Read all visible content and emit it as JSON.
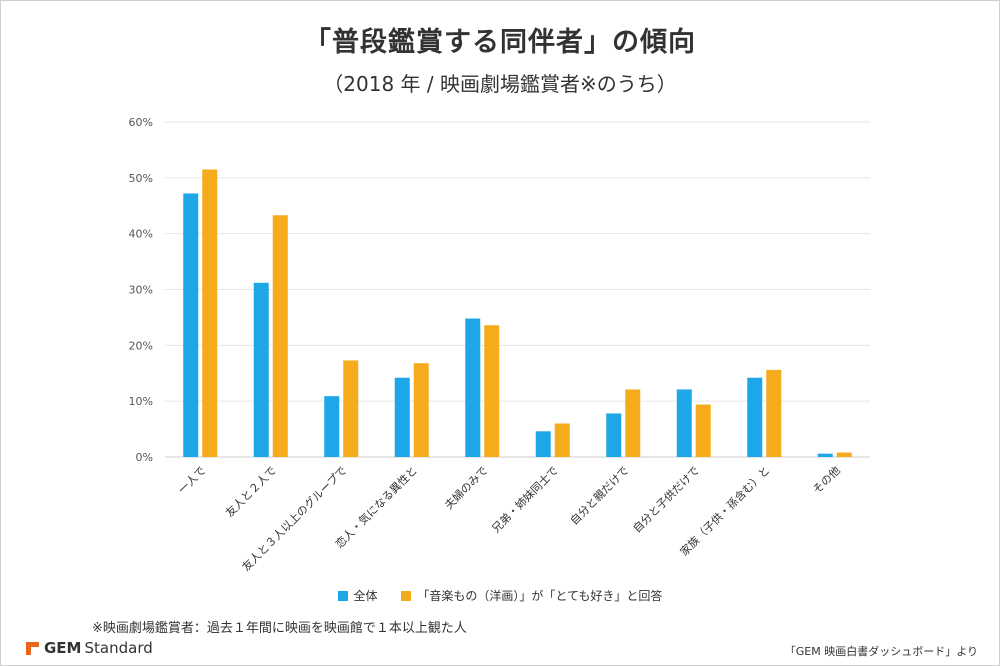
{
  "chart_data": {
    "type": "bar",
    "title": "「普段鑑賞する同伴者」の傾向",
    "subtitle": "（2018 年 / 映画劇場鑑賞者※のうち）",
    "categories": [
      "一人で",
      "友人と２人で",
      "友人と３人以上のグループで",
      "恋人・気になる異性と",
      "夫婦のみで",
      "兄弟・姉妹同士で",
      "自分と親だけで",
      "自分と子供だけで",
      "家族（子供・孫含む）と",
      "その他"
    ],
    "series": [
      {
        "name": "全体",
        "color": "#1ea7e8",
        "values": [
          47.2,
          31.2,
          10.9,
          14.2,
          24.8,
          4.6,
          7.8,
          12.1,
          14.2,
          0.6
        ]
      },
      {
        "name": "「音楽もの（洋画）」が「とても好き」と回答",
        "color": "#f5ab1c",
        "values": [
          51.5,
          43.3,
          17.3,
          16.8,
          23.6,
          6.0,
          12.1,
          9.4,
          15.6,
          0.8
        ]
      }
    ],
    "yticks": [
      "0%",
      "10%",
      "20%",
      "30%",
      "40%",
      "50%",
      "60%"
    ],
    "ylim": [
      0,
      60
    ],
    "grid": true,
    "legend_position": "bottom"
  },
  "footnote": "※映画劇場鑑賞者：過去１年間に映画を映画館で１本以上観た人",
  "logo": {
    "brand": "GEM",
    "suffix": "Standard"
  },
  "source": "「GEM 映画白書ダッシュボード」より"
}
